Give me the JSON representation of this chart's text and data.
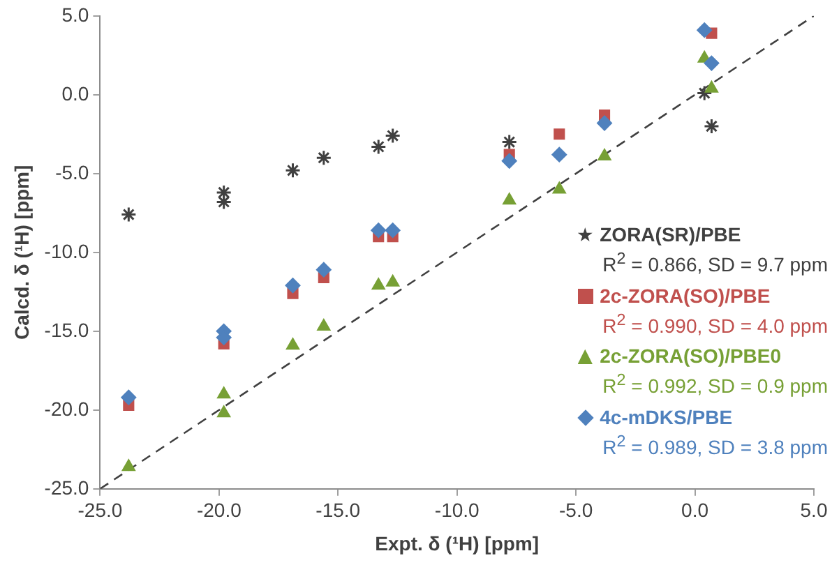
{
  "chart_data": {
    "type": "scatter",
    "xlabel": "Expt. δ (¹H) [ppm]",
    "ylabel": "Calcd. δ (¹H) [ppm]",
    "xlim": [
      -25,
      5
    ],
    "ylim": [
      -25,
      5
    ],
    "xticks": [
      {
        "value": -25,
        "label": "-25.0"
      },
      {
        "value": -20,
        "label": "-20.0"
      },
      {
        "value": -15,
        "label": "-15.0"
      },
      {
        "value": -10,
        "label": "-10.0"
      },
      {
        "value": -5,
        "label": "-5.0"
      },
      {
        "value": 0,
        "label": "0.0"
      },
      {
        "value": 5,
        "label": "5.0"
      }
    ],
    "yticks": [
      {
        "value": -25,
        "label": "-25.0"
      },
      {
        "value": -20,
        "label": "-20.0"
      },
      {
        "value": -15,
        "label": "-15.0"
      },
      {
        "value": -10,
        "label": "-10.0"
      },
      {
        "value": -5,
        "label": "-5.0"
      },
      {
        "value": 0,
        "label": "0.0"
      },
      {
        "value": 5,
        "label": "5.0"
      }
    ],
    "grid": false,
    "legend": "bottom right",
    "series": [
      {
        "type": "line",
        "line_style": "dashed",
        "marker": "none",
        "color": "#404040",
        "x": [
          -25,
          5
        ],
        "values": [
          -25,
          5
        ]
      },
      {
        "name": "ZORA(SR)/PBE",
        "marker": "cross",
        "color": "#404040",
        "x": [
          -23.8,
          -19.8,
          -19.8,
          -16.9,
          -15.6,
          -13.3,
          -12.7,
          -7.8,
          null,
          null,
          0.4,
          0.7
        ],
        "values": [
          -7.6,
          -6.2,
          -6.8,
          -4.8,
          -4.0,
          -3.3,
          -2.6,
          -3.0,
          null,
          null,
          0.1,
          -2.0
        ]
      },
      {
        "name": "2c-ZORA(SO)/PBE",
        "marker": "square",
        "color": "#c0504d",
        "x": [
          -23.8,
          null,
          -19.8,
          -16.9,
          -15.6,
          -13.3,
          -12.7,
          -7.8,
          -5.7,
          -3.8,
          0.4,
          0.7
        ],
        "values": [
          -19.7,
          null,
          -15.8,
          -12.6,
          -11.6,
          -9.0,
          -9.0,
          -3.8,
          -2.5,
          -1.3,
          null,
          3.9
        ]
      },
      {
        "name": "2c-ZORA(SO)/PBE0",
        "marker": "triangle",
        "color": "#77a035",
        "x": [
          -23.8,
          -19.8,
          -19.8,
          -16.9,
          -15.6,
          -13.3,
          -12.7,
          -7.8,
          -5.7,
          -3.8,
          0.4,
          0.7
        ],
        "values": [
          -23.6,
          -19.0,
          -20.2,
          -15.9,
          -14.7,
          -12.1,
          -11.9,
          -6.7,
          -6.0,
          -3.9,
          2.3,
          0.4
        ]
      },
      {
        "name": "4c-mDKS/PBE",
        "marker": "diamond",
        "color": "#4f81bd",
        "x": [
          -23.8,
          -19.8,
          -19.8,
          -16.9,
          -15.6,
          -13.3,
          -12.7,
          -7.8,
          -5.7,
          -3.8,
          0.4,
          0.7
        ],
        "values": [
          -19.2,
          -15.0,
          -15.4,
          -12.1,
          -11.1,
          -8.6,
          -8.6,
          -4.2,
          -3.8,
          -1.8,
          4.1,
          2.0
        ]
      }
    ],
    "annotations": [
      "R$^{2}$ = 0.866, SD = 9.7 ppm",
      "R$^{2}$ = 0.990, SD = 4.0 ppm",
      "R$^{2}$ = 0.992, SD = 0.9 ppm",
      "R$^{2}$ = 0.989, SD = 3.8 ppm"
    ]
  }
}
